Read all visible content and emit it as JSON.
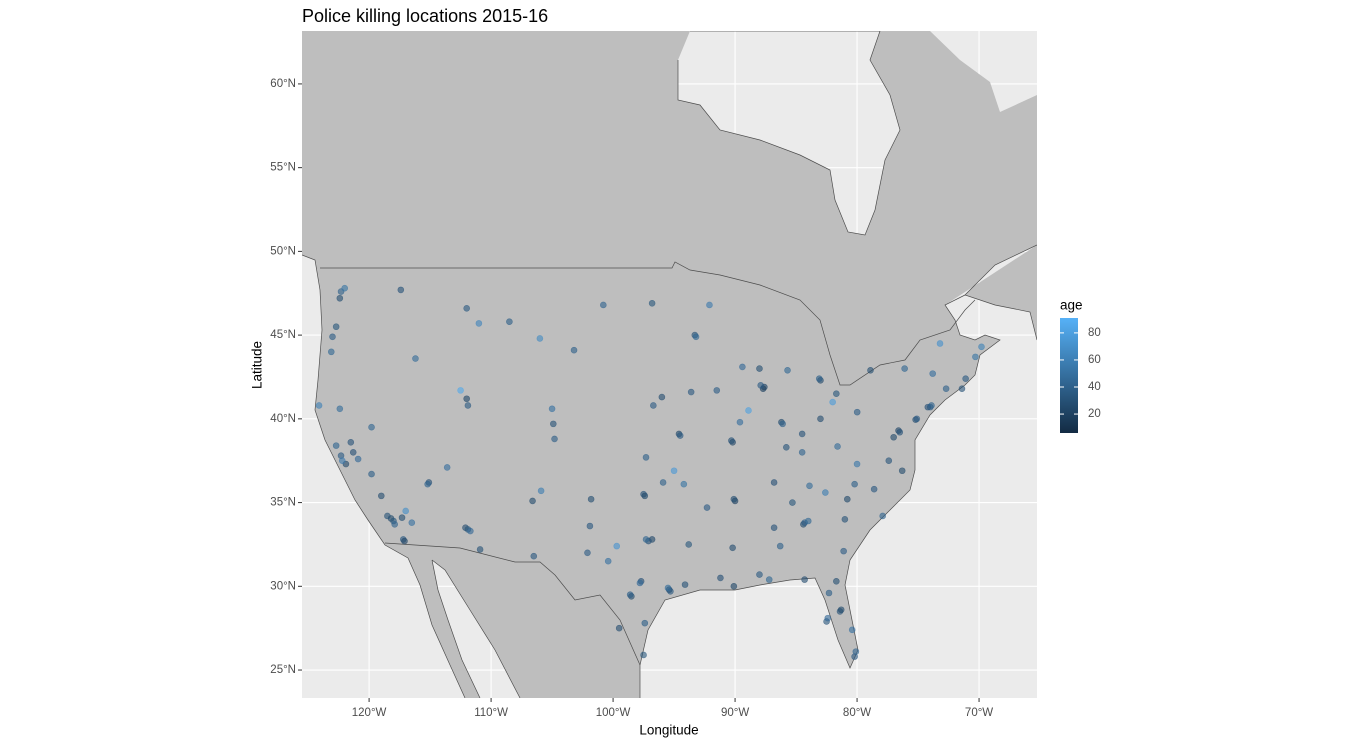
{
  "chart_data": {
    "type": "scatter",
    "title": "Police killing locations 2015-16",
    "x_label": "Longitude",
    "y_label": "Latitude",
    "xlim": [
      -125.5,
      -65.25
    ],
    "ylim": [
      23.33,
      63.16
    ],
    "xticks": [
      {
        "value": -120,
        "label": "120°W"
      },
      {
        "value": -110,
        "label": "110°W"
      },
      {
        "value": -100,
        "label": "100°W"
      },
      {
        "value": -90,
        "label": "90°W"
      },
      {
        "value": -80,
        "label": "80°W"
      },
      {
        "value": -70,
        "label": "70°W"
      }
    ],
    "yticks": [
      {
        "value": 25,
        "label": "25°N"
      },
      {
        "value": 30,
        "label": "30°N"
      },
      {
        "value": 35,
        "label": "35°N"
      },
      {
        "value": 40,
        "label": "40°N"
      },
      {
        "value": 45,
        "label": "45°N"
      },
      {
        "value": 50,
        "label": "50°N"
      },
      {
        "value": 55,
        "label": "55°N"
      },
      {
        "value": 60,
        "label": "60°N"
      }
    ],
    "grid": true,
    "point_opacity": 0.6,
    "color_legend": {
      "title": "age",
      "lim": [
        6,
        91
      ],
      "ticks": [
        20,
        40,
        60,
        80
      ],
      "low": "#132B43",
      "high": "#56B1F7"
    },
    "x": [
      -118.2,
      -118.0,
      -117.9,
      -117.3,
      -117.2,
      -117.1,
      -116.5,
      -118.5,
      -119.0,
      -119.8,
      -120.9,
      -121.5,
      -121.9,
      -122.3,
      -122.2,
      -122.7,
      -124.1,
      -122.4,
      -121.3,
      -122.7,
      -122.3,
      -122.4,
      -122.0,
      -123.0,
      -123.1,
      -117.4,
      -116.2,
      -112.0,
      -108.5,
      -111.0,
      -112.1,
      -111.9,
      -111.7,
      -110.9,
      -106.6,
      -106.5,
      -115.1,
      -115.2,
      -111.9,
      -112.0,
      -104.9,
      -104.8,
      -105.0,
      -105.9,
      -119.8,
      -113.6,
      -97.5,
      -97.4,
      -95.9,
      -96.7,
      -96.0,
      -97.3,
      -94.6,
      -94.5,
      -93.3,
      -93.2,
      -92.1,
      -96.8,
      -100.8,
      -103.2,
      -101.8,
      -101.9,
      -98.5,
      -98.6,
      -97.7,
      -97.8,
      -96.8,
      -97.1,
      -97.3,
      -95.4,
      -95.3,
      -95.5,
      -94.1,
      -97.4,
      -97.5,
      -99.5,
      -100.4,
      -102.1,
      -87.6,
      -87.7,
      -87.9,
      -88.0,
      -86.2,
      -86.1,
      -84.5,
      -83.0,
      -81.7,
      -83.0,
      -83.1,
      -85.7,
      -90.2,
      -90.3,
      -89.6,
      -91.5,
      -93.6,
      -86.8,
      -85.8,
      -84.5,
      -90.0,
      -90.1,
      -92.3,
      -94.2,
      -89.4,
      -90.1,
      -91.2,
      -93.8,
      -90.2,
      -86.8,
      -86.3,
      -88.0,
      -84.4,
      -84.3,
      -84.0,
      -81.0,
      -80.8,
      -80.2,
      -78.6,
      -77.9,
      -81.1,
      -81.7,
      -82.5,
      -82.4,
      -81.4,
      -81.3,
      -80.2,
      -80.1,
      -80.4,
      -82.3,
      -84.3,
      -87.2,
      -85.3,
      -83.9,
      -82.6,
      -77.0,
      -76.6,
      -76.5,
      -75.2,
      -75.1,
      -74.2,
      -74.0,
      -73.9,
      -73.8,
      -71.1,
      -71.4,
      -72.7,
      -76.1,
      -78.9,
      -79.99,
      -77.4,
      -76.3,
      -80.0,
      -81.6,
      -70.3,
      -69.8,
      -73.2,
      -99.7,
      -88.9,
      -112.5,
      -106.0,
      -95.0,
      -117.0,
      -82.0
    ],
    "y": [
      34.05,
      33.9,
      33.7,
      34.1,
      32.8,
      32.7,
      33.8,
      34.2,
      35.4,
      36.7,
      37.6,
      38.6,
      37.3,
      37.8,
      37.5,
      38.4,
      40.8,
      40.6,
      38.0,
      45.5,
      47.6,
      47.2,
      47.8,
      44.9,
      44.0,
      47.7,
      43.6,
      46.6,
      45.8,
      45.7,
      33.5,
      33.4,
      33.3,
      32.2,
      35.1,
      31.8,
      36.2,
      36.1,
      40.8,
      41.2,
      39.7,
      38.8,
      40.6,
      35.7,
      39.5,
      37.1,
      35.5,
      35.4,
      36.2,
      40.8,
      41.3,
      37.7,
      39.1,
      39.0,
      45.0,
      44.9,
      46.8,
      46.9,
      46.8,
      44.1,
      35.2,
      33.6,
      29.4,
      29.5,
      30.3,
      30.2,
      32.8,
      32.7,
      32.8,
      29.8,
      29.7,
      29.9,
      30.1,
      27.8,
      25.9,
      27.5,
      31.5,
      32.0,
      41.9,
      41.8,
      42.0,
      43.0,
      39.8,
      39.7,
      39.1,
      40.0,
      41.5,
      42.3,
      42.4,
      42.9,
      38.6,
      38.7,
      39.8,
      41.7,
      41.6,
      36.2,
      38.3,
      38.0,
      35.1,
      35.2,
      34.7,
      36.1,
      43.1,
      30.0,
      30.5,
      32.5,
      32.3,
      33.5,
      32.4,
      30.7,
      33.7,
      33.8,
      33.9,
      34.0,
      35.2,
      36.1,
      35.8,
      34.2,
      32.1,
      30.3,
      27.9,
      28.1,
      28.5,
      28.6,
      25.8,
      26.1,
      27.4,
      29.6,
      30.4,
      30.4,
      35.0,
      36.0,
      35.6,
      38.9,
      39.3,
      39.2,
      39.95,
      40.0,
      40.7,
      40.7,
      40.8,
      42.7,
      42.4,
      41.8,
      41.8,
      43.0,
      42.9,
      40.4,
      37.5,
      36.9,
      37.3,
      38.35,
      43.7,
      44.3,
      44.5,
      32.4,
      40.5,
      41.7,
      44.8,
      36.9,
      34.5,
      41.0
    ],
    "color_values": [
      25,
      33,
      41,
      28,
      35,
      22,
      50,
      30,
      27,
      38,
      45,
      31,
      24,
      36,
      55,
      42,
      60,
      47,
      29,
      33,
      40,
      28,
      52,
      37,
      44,
      31,
      46,
      35,
      38,
      62,
      27,
      33,
      45,
      30,
      26,
      34,
      29,
      41,
      35,
      23,
      30,
      37,
      50,
      58,
      43,
      48,
      31,
      25,
      40,
      36,
      27,
      39,
      24,
      35,
      30,
      44,
      55,
      33,
      41,
      39,
      28,
      34,
      26,
      38,
      29,
      45,
      24,
      31,
      42,
      22,
      35,
      47,
      30,
      38,
      33,
      27,
      50,
      36,
      23,
      19,
      36,
      28,
      25,
      40,
      31,
      27,
      33,
      26,
      39,
      44,
      22,
      30,
      48,
      37,
      34,
      29,
      32,
      41,
      20,
      28,
      36,
      52,
      45,
      24,
      29,
      33,
      27,
      31,
      40,
      35,
      26,
      37,
      44,
      30,
      25,
      39,
      34,
      42,
      36,
      28,
      32,
      45,
      30,
      26,
      34,
      41,
      50,
      38,
      27,
      44,
      33,
      46,
      58,
      25,
      22,
      31,
      27,
      36,
      29,
      34,
      41,
      48,
      35,
      30,
      39,
      43,
      28,
      37,
      32,
      26,
      54,
      46,
      52,
      61,
      70,
      72,
      80,
      85,
      66,
      75,
      68,
      77
    ]
  }
}
